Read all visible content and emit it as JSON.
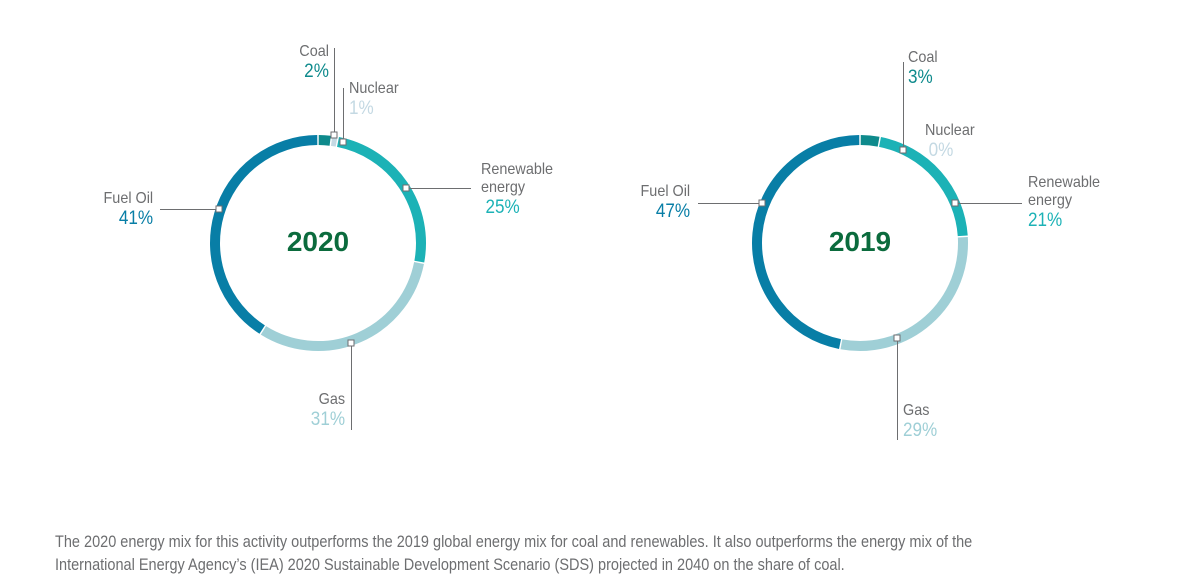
{
  "chart_data": [
    {
      "type": "pie",
      "variant": "donut",
      "title": "2020",
      "categories": [
        "Coal",
        "Nuclear",
        "Renewable energy",
        "Gas",
        "Fuel Oil"
      ],
      "values": [
        2,
        1,
        25,
        31,
        41
      ],
      "labels": {
        "coal": {
          "name": "Coal",
          "pct": "2%"
        },
        "nuclear": {
          "name": "Nuclear",
          "pct": "1%"
        },
        "renewable": {
          "name1": "Renewable",
          "name2": "energy",
          "pct": "25%"
        },
        "gas": {
          "name": "Gas",
          "pct": "31%"
        },
        "fueloil": {
          "name": "Fuel Oil",
          "pct": "41%"
        }
      }
    },
    {
      "type": "pie",
      "variant": "donut",
      "title": "2019",
      "categories": [
        "Coal",
        "Nuclear",
        "Renewable energy",
        "Gas",
        "Fuel Oil"
      ],
      "values": [
        3,
        0,
        21,
        29,
        47
      ],
      "labels": {
        "coal": {
          "name": "Coal",
          "pct": "3%"
        },
        "nuclear": {
          "name": "Nuclear",
          "pct": "0%"
        },
        "renewable": {
          "name1": "Renewable",
          "name2": "energy",
          "pct": "21%"
        },
        "gas": {
          "name": "Gas",
          "pct": "29%"
        },
        "fueloil": {
          "name": "Fuel Oil",
          "pct": "47%"
        }
      }
    }
  ],
  "colors": {
    "Coal": "#0e8a8c",
    "Nuclear": "#c4d9e3",
    "Renewable energy": "#1cb2b6",
    "Gas": "#9fcfd6",
    "Fuel Oil": "#087ea6",
    "center_text": "#0b6b3d",
    "label_text": "#6d6e70"
  },
  "caption": {
    "line1": "The 2020 energy mix for this activity outperforms the 2019 global energy mix for coal and renewables. It also outperforms the energy mix of the",
    "line2": "International Energy Agency’s (IEA) 2020 Sustainable Development Scenario (SDS) projected in 2040 on the share of coal."
  }
}
